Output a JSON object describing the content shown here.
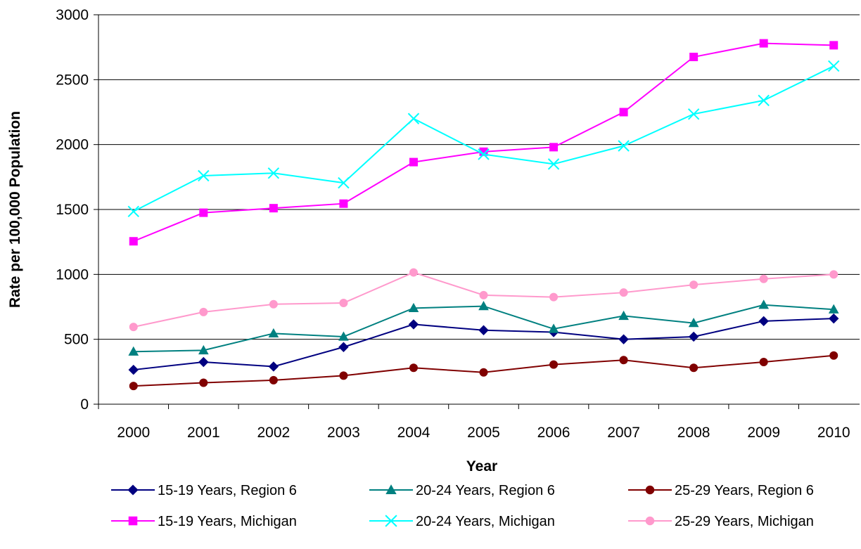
{
  "chart_data": {
    "type": "line",
    "title": "",
    "xlabel": "Year",
    "ylabel": "Rate per 100,000 Population",
    "ylim": [
      0,
      3000
    ],
    "yticks": [
      0,
      500,
      1000,
      1500,
      2000,
      2500,
      3000
    ],
    "x": [
      "2000",
      "2001",
      "2002",
      "2003",
      "2004",
      "2005",
      "2006",
      "2007",
      "2008",
      "2009",
      "2010"
    ],
    "grid": "horizontal",
    "legend_position": "bottom",
    "series": [
      {
        "name": "15-19 Years, Region 6",
        "color": "#000080",
        "marker": "diamond",
        "values": [
          265,
          325,
          290,
          440,
          615,
          570,
          555,
          500,
          520,
          640,
          660
        ]
      },
      {
        "name": "20-24 Years, Region 6",
        "color": "#008080",
        "marker": "triangle",
        "values": [
          405,
          415,
          545,
          520,
          740,
          755,
          580,
          680,
          625,
          765,
          730
        ]
      },
      {
        "name": "25-29 Years, Region 6",
        "color": "#800000",
        "marker": "circle",
        "values": [
          140,
          165,
          185,
          220,
          280,
          245,
          305,
          340,
          280,
          325,
          375
        ]
      },
      {
        "name": "15-19 Years, Michigan",
        "color": "#FF00FF",
        "marker": "square",
        "values": [
          1255,
          1475,
          1510,
          1545,
          1865,
          1945,
          1980,
          2250,
          2675,
          2780,
          2765
        ]
      },
      {
        "name": "20-24 Years, Michigan",
        "color": "#00FFFF",
        "marker": "x",
        "values": [
          1485,
          1760,
          1780,
          1705,
          2200,
          1925,
          1850,
          1990,
          2235,
          2340,
          2605
        ]
      },
      {
        "name": "25-29 Years, Michigan",
        "color": "#FF99CC",
        "marker": "circle",
        "values": [
          595,
          710,
          770,
          780,
          1015,
          840,
          825,
          860,
          920,
          965,
          1000
        ]
      }
    ]
  }
}
